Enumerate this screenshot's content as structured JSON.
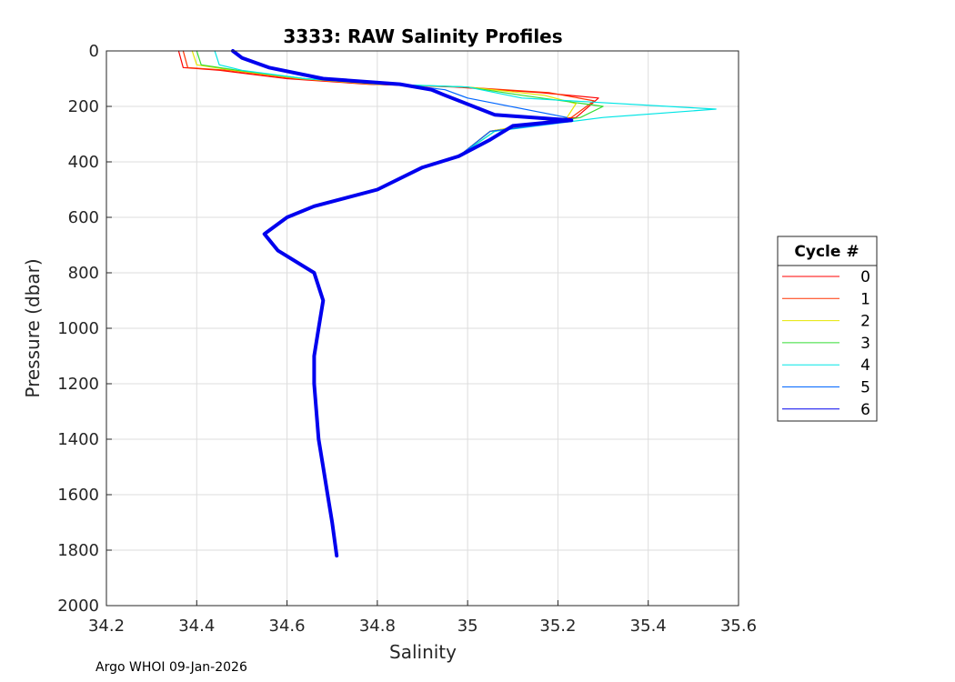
{
  "chart_data": {
    "type": "line",
    "title": "3333: RAW Salinity Profiles",
    "xlabel": "Salinity",
    "ylabel": "Pressure (dbar)",
    "xlim": [
      34.2,
      35.6
    ],
    "ylim": [
      2000,
      0
    ],
    "y_reversed": true,
    "grid": true,
    "x_ticks": [
      "34.2",
      "34.4",
      "34.6",
      "34.8",
      "35",
      "35.2",
      "35.4",
      "35.6"
    ],
    "y_ticks": [
      "0",
      "200",
      "400",
      "600",
      "800",
      "1000",
      "1200",
      "1400",
      "1600",
      "1800",
      "2000"
    ],
    "legend": {
      "title": "Cycle #",
      "position": "outside-right"
    },
    "series": [
      {
        "name": "0",
        "color": "#ff0000",
        "x": [
          34.36,
          34.37,
          34.45,
          34.6,
          34.78,
          34.97,
          35.16,
          35.29,
          35.24,
          35.05,
          34.98,
          34.9,
          34.8,
          34.66,
          34.6,
          34.55,
          34.58,
          34.66,
          34.68,
          34.67,
          34.66,
          34.66,
          34.67,
          34.68,
          34.69,
          34.7,
          34.71
        ],
        "y": [
          0,
          60,
          70,
          100,
          120,
          130,
          150,
          170,
          240,
          290,
          380,
          420,
          500,
          560,
          600,
          660,
          720,
          800,
          900,
          1000,
          1100,
          1200,
          1400,
          1500,
          1600,
          1700,
          1820
        ]
      },
      {
        "name": "1",
        "color": "#ff3300",
        "x": [
          34.37,
          34.38,
          34.47,
          34.62,
          34.79,
          34.99,
          35.18,
          35.28,
          35.23,
          35.05,
          34.98,
          34.9,
          34.8,
          34.66,
          34.6,
          34.55,
          34.58,
          34.66,
          34.68,
          34.67,
          34.66,
          34.66,
          34.67,
          34.68,
          34.69,
          34.7,
          34.71
        ],
        "y": [
          0,
          60,
          70,
          100,
          120,
          130,
          150,
          180,
          240,
          290,
          380,
          420,
          500,
          560,
          600,
          660,
          720,
          800,
          900,
          1000,
          1100,
          1200,
          1400,
          1500,
          1600,
          1700,
          1820
        ]
      },
      {
        "name": "2",
        "color": "#e6e600",
        "x": [
          34.39,
          34.4,
          34.48,
          34.63,
          34.8,
          35.0,
          35.17,
          35.24,
          35.22,
          35.05,
          34.98,
          34.9,
          34.8,
          34.66,
          34.6,
          34.55,
          34.58,
          34.66,
          34.68,
          34.67,
          34.66,
          34.66,
          34.67,
          34.68,
          34.69,
          34.7,
          34.71
        ],
        "y": [
          0,
          50,
          70,
          100,
          120,
          130,
          160,
          190,
          240,
          290,
          380,
          420,
          500,
          560,
          600,
          660,
          720,
          800,
          900,
          1000,
          1100,
          1200,
          1400,
          1500,
          1600,
          1700,
          1820
        ]
      },
      {
        "name": "3",
        "color": "#33dd33",
        "x": [
          34.4,
          34.41,
          34.49,
          34.64,
          34.81,
          35.0,
          35.12,
          35.3,
          35.25,
          35.06,
          34.98,
          34.9,
          34.8,
          34.66,
          34.6,
          34.55,
          34.58,
          34.66,
          34.68,
          34.67,
          34.66,
          34.66,
          34.67,
          34.68,
          34.69,
          34.7,
          34.71
        ],
        "y": [
          0,
          50,
          70,
          100,
          120,
          130,
          160,
          200,
          240,
          290,
          380,
          420,
          500,
          560,
          600,
          660,
          720,
          800,
          900,
          1000,
          1100,
          1200,
          1400,
          1500,
          1600,
          1700,
          1820
        ]
      },
      {
        "name": "4",
        "color": "#00e5e5",
        "x": [
          34.44,
          34.45,
          34.5,
          34.64,
          34.82,
          35.0,
          35.12,
          35.55,
          35.3,
          35.06,
          34.98,
          34.9,
          34.8,
          34.66,
          34.6,
          34.55,
          34.58,
          34.66,
          34.68,
          34.67,
          34.66,
          34.66,
          34.67,
          34.68,
          34.69,
          34.7,
          34.71
        ],
        "y": [
          0,
          50,
          70,
          100,
          120,
          130,
          170,
          210,
          240,
          290,
          380,
          420,
          500,
          560,
          600,
          660,
          720,
          800,
          900,
          1000,
          1100,
          1200,
          1400,
          1500,
          1600,
          1700,
          1820
        ]
      },
      {
        "name": "5",
        "color": "#0066ff",
        "x": [
          34.48,
          34.5,
          34.56,
          34.68,
          34.85,
          34.95,
          35.0,
          35.22,
          35.2,
          35.05,
          34.98,
          34.9,
          34.8,
          34.66,
          34.6,
          34.55,
          34.58,
          34.66,
          34.68,
          34.67,
          34.66,
          34.66,
          34.67,
          34.68,
          34.69,
          34.7,
          34.71
        ],
        "y": [
          0,
          25,
          60,
          100,
          120,
          140,
          170,
          240,
          260,
          290,
          380,
          420,
          500,
          560,
          600,
          660,
          720,
          800,
          900,
          1000,
          1100,
          1200,
          1400,
          1500,
          1600,
          1700,
          1820
        ]
      },
      {
        "name": "6",
        "color": "#0000ee",
        "x": [
          34.48,
          34.5,
          34.56,
          34.68,
          34.85,
          34.92,
          34.95,
          35.06,
          35.23,
          35.1,
          35.05,
          34.98,
          34.9,
          34.8,
          34.66,
          34.6,
          34.55,
          34.58,
          34.66,
          34.68,
          34.67,
          34.66,
          34.66,
          34.67,
          34.68,
          34.69,
          34.7,
          34.71
        ],
        "y": [
          0,
          25,
          60,
          100,
          120,
          140,
          160,
          230,
          250,
          270,
          320,
          380,
          420,
          500,
          560,
          600,
          660,
          720,
          800,
          900,
          1000,
          1100,
          1200,
          1400,
          1500,
          1600,
          1700,
          1820
        ]
      }
    ]
  },
  "footer": {
    "text": "Argo WHOI 09-Jan-2026"
  }
}
